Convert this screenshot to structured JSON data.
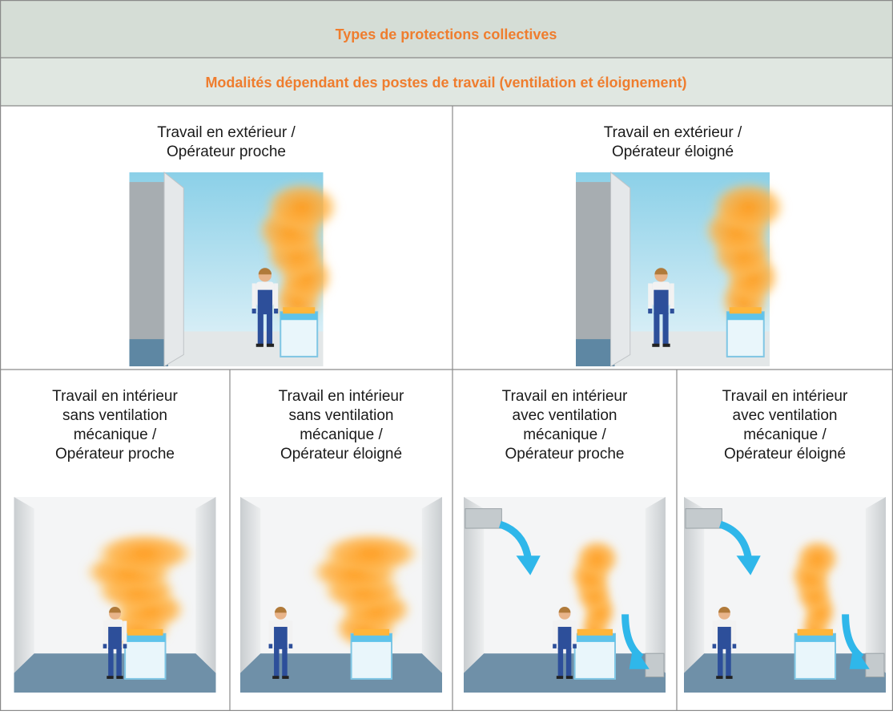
{
  "header": {
    "title": "Types de protections collectives",
    "subtitle": "Modalités dépendant des postes de travail (ventilation et éloignement)"
  },
  "rows": [
    [
      {
        "lines": [
          "Travail en extérieur /",
          "Opérateur proche"
        ]
      },
      {
        "lines": [
          "Travail en extérieur /",
          "Opérateur éloigné"
        ]
      }
    ],
    [
      {
        "lines": [
          "Travail en intérieur",
          "sans ventilation",
          "mécanique /",
          "Opérateur proche"
        ]
      },
      {
        "lines": [
          "Travail en intérieur",
          "sans ventilation",
          "mécanique /",
          "Opérateur éloigné"
        ]
      },
      {
        "lines": [
          "Travail en intérieur",
          "avec ventilation",
          "mécanique /",
          "Opérateur proche"
        ]
      },
      {
        "lines": [
          "Travail en intérieur",
          "avec ventilation",
          "mécanique /",
          "Opérateur éloigné"
        ]
      }
    ]
  ]
}
